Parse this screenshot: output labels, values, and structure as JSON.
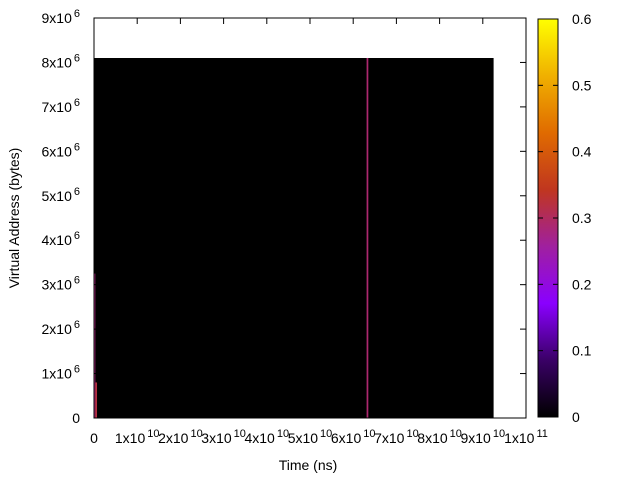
{
  "chart_data": {
    "type": "heatmap",
    "title": "",
    "xlabel": "Time (ns)",
    "ylabel": "Virtual Address (bytes)",
    "xlim": [
      0,
      100000000000
    ],
    "ylim": [
      0,
      9000000
    ],
    "x_ticks": [
      {
        "value": 0,
        "mantissa": "0",
        "exp": ""
      },
      {
        "value": 10000000000,
        "mantissa": "1x10",
        "exp": "10"
      },
      {
        "value": 20000000000,
        "mantissa": "2x10",
        "exp": "10"
      },
      {
        "value": 30000000000,
        "mantissa": "3x10",
        "exp": "10"
      },
      {
        "value": 40000000000,
        "mantissa": "4x10",
        "exp": "10"
      },
      {
        "value": 50000000000,
        "mantissa": "5x10",
        "exp": "10"
      },
      {
        "value": 60000000000,
        "mantissa": "6x10",
        "exp": "10"
      },
      {
        "value": 70000000000,
        "mantissa": "7x10",
        "exp": "10"
      },
      {
        "value": 80000000000,
        "mantissa": "8x10",
        "exp": "10"
      },
      {
        "value": 90000000000,
        "mantissa": "9x10",
        "exp": "10"
      },
      {
        "value": 100000000000,
        "mantissa": "1x10",
        "exp": "11"
      }
    ],
    "y_ticks": [
      {
        "value": 0,
        "mantissa": "0",
        "exp": ""
      },
      {
        "value": 1000000,
        "mantissa": "1x10",
        "exp": "6"
      },
      {
        "value": 2000000,
        "mantissa": "2x10",
        "exp": "6"
      },
      {
        "value": 3000000,
        "mantissa": "3x10",
        "exp": "6"
      },
      {
        "value": 4000000,
        "mantissa": "4x10",
        "exp": "6"
      },
      {
        "value": 5000000,
        "mantissa": "5x10",
        "exp": "6"
      },
      {
        "value": 6000000,
        "mantissa": "6x10",
        "exp": "6"
      },
      {
        "value": 7000000,
        "mantissa": "7x10",
        "exp": "6"
      },
      {
        "value": 8000000,
        "mantissa": "8x10",
        "exp": "6"
      },
      {
        "value": 9000000,
        "mantissa": "9x10",
        "exp": "6"
      }
    ],
    "background_region": {
      "x": [
        0,
        92500000000
      ],
      "y": [
        0,
        8100000
      ],
      "value": 0
    },
    "cells": [
      {
        "x": [
          0,
          300000000
        ],
        "y": [
          0,
          3250000
        ],
        "value": 0.28
      },
      {
        "x": [
          300000000,
          700000000
        ],
        "y": [
          0,
          800000
        ],
        "value": 0.32
      },
      {
        "x": [
          63100000000,
          63500000000
        ],
        "y": [
          0,
          8100000
        ],
        "value": 0.29
      }
    ],
    "colorbar": {
      "range": [
        0,
        0.6
      ],
      "ticks": [
        {
          "value": 0,
          "label": "0"
        },
        {
          "value": 0.1,
          "label": "0.1"
        },
        {
          "value": 0.2,
          "label": "0.2"
        },
        {
          "value": 0.3,
          "label": "0.3"
        },
        {
          "value": 0.4,
          "label": "0.4"
        },
        {
          "value": 0.5,
          "label": "0.5"
        },
        {
          "value": 0.6,
          "label": "0.6"
        }
      ],
      "palette": [
        "#000000",
        "#3a0066",
        "#8a00ff",
        "#a0209f",
        "#c0361f",
        "#e06b00",
        "#f0b000",
        "#ffff00"
      ]
    },
    "grid": false,
    "legend": "none"
  }
}
